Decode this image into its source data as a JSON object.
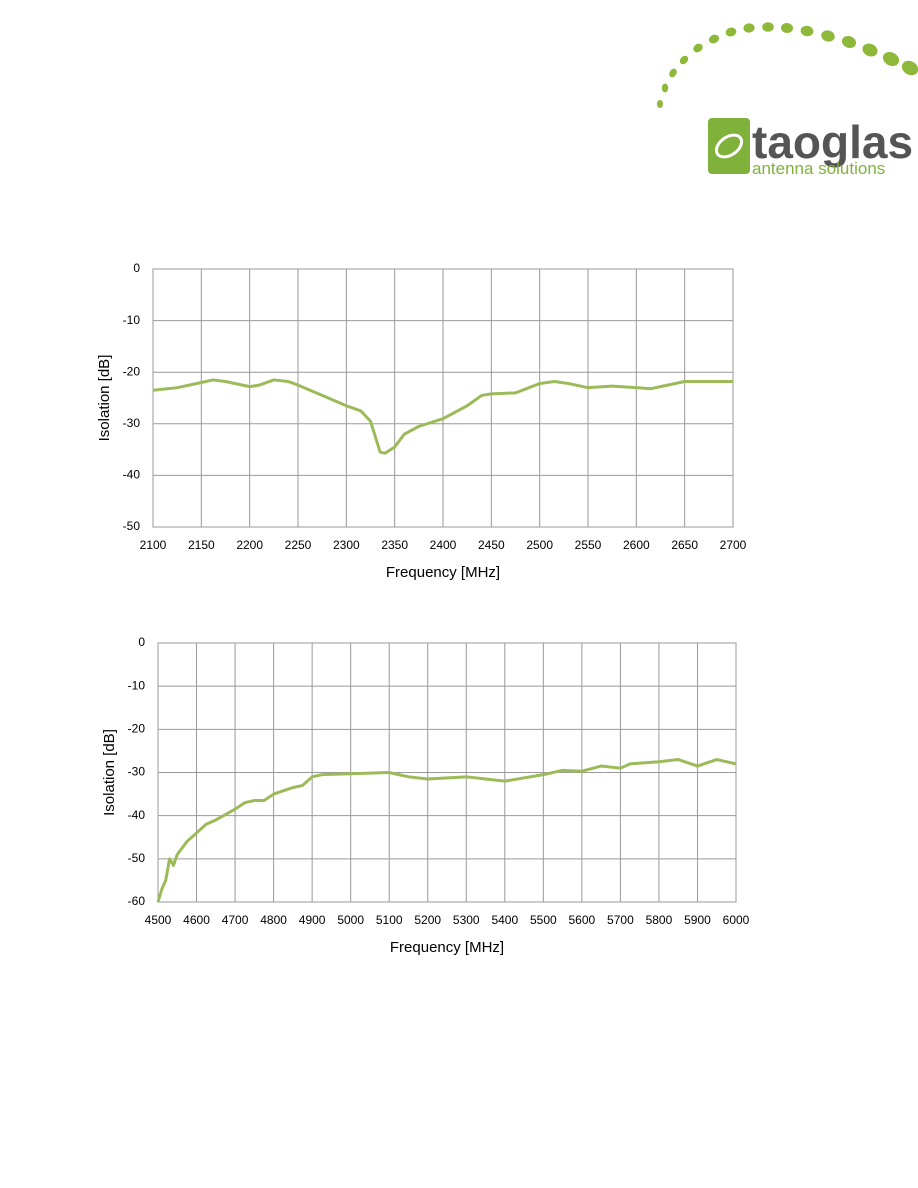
{
  "logo": {
    "name": "taoglas",
    "tagline": "antenna solutions"
  },
  "chart_data": [
    {
      "type": "line",
      "x_label": "Frequency [MHz]",
      "y_label": "Isolation  [dB]",
      "xlim": [
        2100,
        2700
      ],
      "xticks": [
        2100,
        2150,
        2200,
        2250,
        2300,
        2350,
        2400,
        2450,
        2500,
        2550,
        2600,
        2650,
        2700
      ],
      "ylim": [
        -50,
        0
      ],
      "yticks": [
        -50,
        -40,
        -30,
        -20,
        -10,
        0
      ],
      "grid": true,
      "x": [
        2100,
        2125,
        2150,
        2162,
        2175,
        2200,
        2210,
        2225,
        2240,
        2250,
        2275,
        2300,
        2315,
        2325,
        2335,
        2340,
        2350,
        2360,
        2375,
        2400,
        2425,
        2440,
        2450,
        2475,
        2500,
        2515,
        2530,
        2550,
        2575,
        2600,
        2615,
        2625,
        2650,
        2675,
        2700
      ],
      "series": [
        {
          "color": "#9bbb59",
          "values": [
            -23.5,
            -23,
            -22,
            -21.5,
            -21.8,
            -22.8,
            -22.5,
            -21.5,
            -21.8,
            -22.5,
            -24.5,
            -26.5,
            -27.5,
            -29.5,
            -35.5,
            -35.7,
            -34.5,
            -32,
            -30.5,
            -29,
            -26.5,
            -24.5,
            -24.2,
            -24,
            -22.2,
            -21.8,
            -22.2,
            -23,
            -22.7,
            -23,
            -23.2,
            -22.8,
            -21.8,
            -21.8,
            -21.8
          ]
        }
      ]
    },
    {
      "type": "line",
      "x_label": "Frequency [MHz]",
      "y_label": "Isolation  [dB]",
      "xlim": [
        4500,
        6000
      ],
      "xticks": [
        4500,
        4600,
        4700,
        4800,
        4900,
        5000,
        5100,
        5200,
        5300,
        5400,
        5500,
        5600,
        5700,
        5800,
        5900,
        6000
      ],
      "ylim": [
        -60,
        0
      ],
      "yticks": [
        -60,
        -50,
        -40,
        -30,
        -20,
        -10,
        0
      ],
      "grid": true,
      "x": [
        4500,
        4510,
        4520,
        4530,
        4540,
        4550,
        4575,
        4600,
        4625,
        4650,
        4700,
        4725,
        4750,
        4775,
        4800,
        4850,
        4875,
        4900,
        4925,
        5000,
        5100,
        5150,
        5200,
        5300,
        5400,
        5500,
        5550,
        5600,
        5650,
        5700,
        5725,
        5800,
        5850,
        5900,
        5950,
        6000
      ],
      "series": [
        {
          "color": "#9bbb59",
          "values": [
            -60,
            -57,
            -55,
            -50,
            -51.5,
            -49,
            -46,
            -44,
            -42,
            -41,
            -38.5,
            -37,
            -36.5,
            -36.5,
            -35,
            -33.5,
            -33,
            -31,
            -30.5,
            -30.3,
            -30,
            -31,
            -31.5,
            -31,
            -32,
            -30.5,
            -29.5,
            -29.7,
            -28.5,
            -29,
            -28,
            -27.5,
            -27,
            -28.5,
            -27,
            -28
          ]
        }
      ]
    }
  ]
}
